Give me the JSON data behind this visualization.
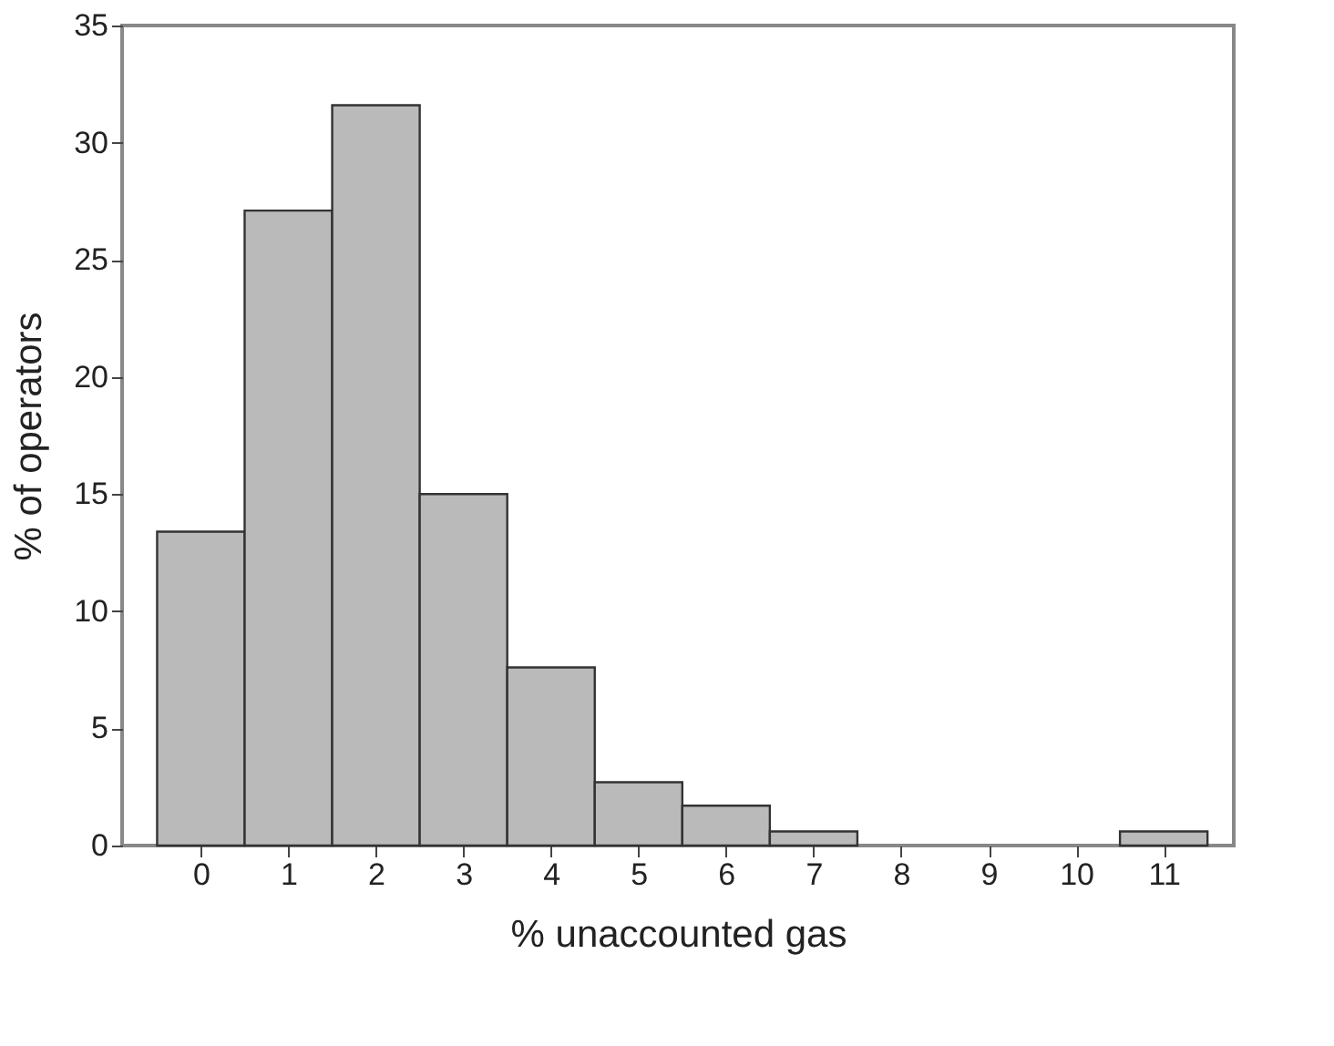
{
  "chart_data": {
    "type": "histogram",
    "xlabel": "% unaccounted gas",
    "ylabel": "% of operators",
    "bins": [
      -0.5,
      0.5,
      1.5,
      2.5,
      3.5,
      4.5,
      5.5,
      6.5,
      7.5,
      8.5,
      9.5,
      10.5,
      11.5
    ],
    "values": [
      13.4,
      27.1,
      31.6,
      15.0,
      7.6,
      2.7,
      1.7,
      0.6,
      0,
      0,
      0,
      0.6
    ],
    "color": "#bababa",
    "xlim": [
      -0.9,
      11.8
    ],
    "xticks": [
      0,
      1,
      2,
      3,
      4,
      5,
      6,
      7,
      8,
      9,
      10,
      11
    ],
    "ylim": [
      0,
      35
    ],
    "yticks": [
      0,
      5,
      10,
      15,
      20,
      25,
      30,
      35
    ],
    "grid": false
  }
}
